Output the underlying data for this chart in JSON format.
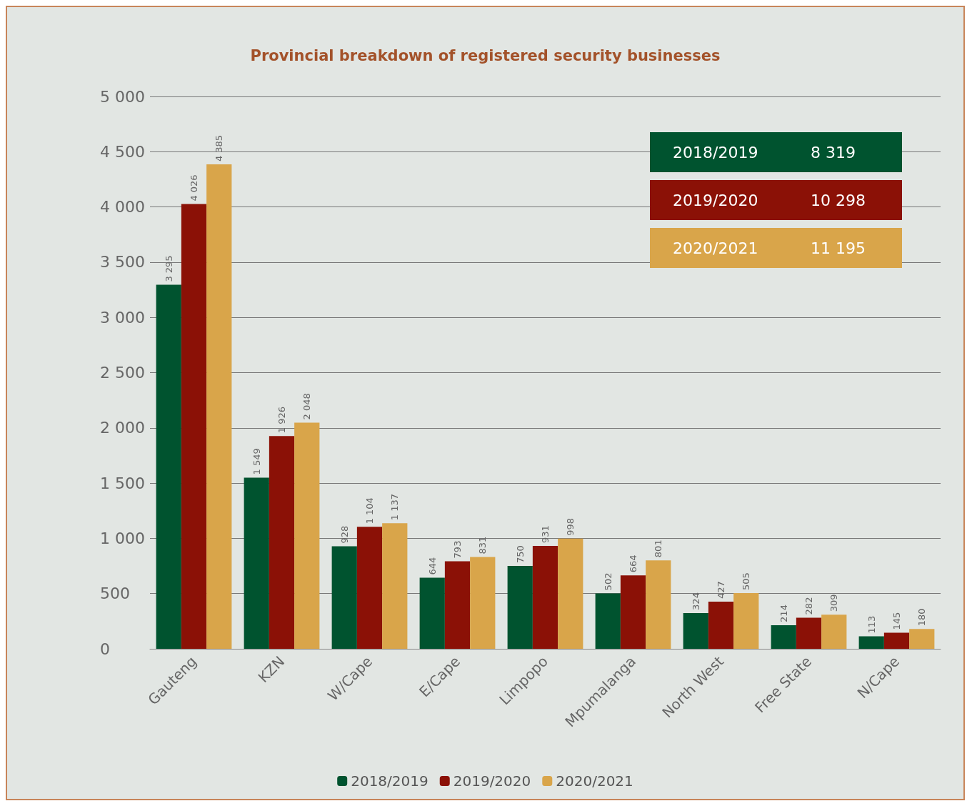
{
  "chart_data": {
    "type": "bar",
    "title": "Provincial breakdown of registered security businesses",
    "categories": [
      "Gauteng",
      "KZN",
      "W/Cape",
      "E/Cape",
      "Limpopo",
      "Mpumalanga",
      "North West",
      "Free State",
      "N/Cape"
    ],
    "series": [
      {
        "name": "2018/2019",
        "color": "#00532f",
        "values": [
          3295,
          1549,
          928,
          644,
          750,
          502,
          324,
          214,
          113
        ],
        "value_labels": [
          "3 295",
          "1 549",
          "928",
          "644",
          "750",
          "502",
          "324",
          "214",
          "113"
        ]
      },
      {
        "name": "2019/2020",
        "color": "#8b1106",
        "values": [
          4026,
          1926,
          1104,
          793,
          931,
          664,
          427,
          282,
          145
        ],
        "value_labels": [
          "4 026",
          "1 926",
          "1 104",
          "793",
          "931",
          "664",
          "427",
          "282",
          "145"
        ]
      },
      {
        "name": "2020/2021",
        "color": "#d9a54a",
        "values": [
          4385,
          2048,
          1137,
          831,
          998,
          801,
          505,
          309,
          180
        ],
        "value_labels": [
          "4 385",
          "2 048",
          "1 137",
          "831",
          "998",
          "801",
          "505",
          "309",
          "180"
        ]
      }
    ],
    "annotations": [
      "8 319",
      "10 298",
      "11 195"
    ],
    "ylim": [
      0,
      5000
    ],
    "yticks": [
      0,
      500,
      {
        "value": 1000,
        "label": "1 000"
      },
      {
        "value": 1500,
        "label": "1 500"
      },
      {
        "value": 2000,
        "label": "2 000"
      },
      {
        "value": 2500,
        "label": "2 500"
      },
      {
        "value": 3000,
        "label": "3 000"
      },
      {
        "value": 3500,
        "label": "3 500"
      },
      {
        "value": 4000,
        "label": "4 000"
      },
      {
        "value": 4500,
        "label": "4 500"
      },
      {
        "value": 5000,
        "label": "5 000"
      }
    ],
    "grid": "y",
    "legend": "bottom"
  }
}
